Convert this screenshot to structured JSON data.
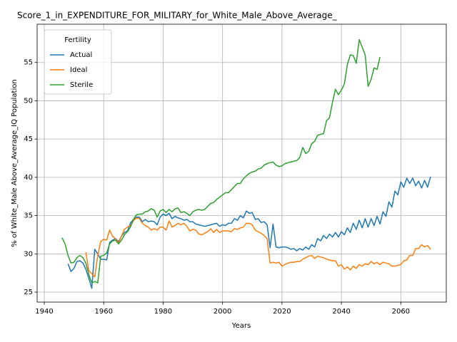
{
  "chart_data": {
    "type": "line",
    "title": "Score_1_in_EXPENDITURE_FOR_MILITARY_for_White_Male_Above_Average_",
    "xlabel": "Years",
    "ylabel": "% of White_Male Above_Average_IQ Population",
    "legend_title": "Fertility",
    "legend": "upper left",
    "grid": true,
    "xlim": [
      1937.6,
      2075.3
    ],
    "ylim": [
      23.7,
      60.0
    ],
    "xticks": [
      1940,
      1960,
      1980,
      2000,
      2020,
      2040,
      2060
    ],
    "yticks": [
      25,
      30,
      35,
      40,
      45,
      50,
      55
    ],
    "x": [
      1946,
      1947,
      1948,
      1949,
      1950,
      1951,
      1952,
      1953,
      1954,
      1955,
      1956,
      1957,
      1958,
      1959,
      1960,
      1961,
      1962,
      1963,
      1964,
      1965,
      1966,
      1967,
      1968,
      1969,
      1970,
      1971,
      1972,
      1973,
      1974,
      1975,
      1976,
      1977,
      1978,
      1979,
      1980,
      1981,
      1982,
      1983,
      1984,
      1985,
      1986,
      1987,
      1988,
      1989,
      1990,
      1991,
      1992,
      1993,
      1994,
      1995,
      1996,
      1997,
      1998,
      1999,
      2000,
      2001,
      2002,
      2003,
      2004,
      2005,
      2006,
      2007,
      2008,
      2009,
      2010,
      2011,
      2012,
      2013,
      2014,
      2015,
      2016,
      2017,
      2018,
      2019,
      2020,
      2021,
      2022,
      2023,
      2024,
      2025,
      2026,
      2027,
      2028,
      2029,
      2030,
      2031,
      2032,
      2033,
      2034,
      2035,
      2036,
      2037,
      2038,
      2039,
      2040,
      2041,
      2042,
      2043,
      2044,
      2045,
      2046,
      2047,
      2048,
      2049,
      2050,
      2051,
      2052,
      2053,
      2054,
      2055,
      2056,
      2057,
      2058,
      2059,
      2060,
      2061,
      2062,
      2063,
      2064,
      2065,
      2066,
      2067,
      2068,
      2069,
      2070
    ],
    "series": [
      {
        "name": "Actual",
        "color": "#1f77b4",
        "values": [
          null,
          null,
          28.7,
          27.7,
          28.1,
          29.0,
          29.1,
          28.8,
          28.0,
          26.8,
          25.5,
          30.6,
          30.0,
          29.3,
          29.3,
          29.2,
          31.5,
          31.8,
          32.0,
          31.6,
          32.3,
          32.8,
          33.0,
          34.0,
          34.5,
          34.8,
          34.8,
          34.2,
          34.5,
          34.2,
          34.3,
          34.2,
          33.8,
          34.8,
          35.2,
          35.0,
          35.3,
          34.6,
          34.9,
          34.7,
          34.6,
          34.4,
          34.5,
          34.2,
          34.2,
          33.9,
          33.8,
          33.7,
          33.6,
          33.7,
          33.8,
          33.9,
          34.0,
          33.6,
          33.8,
          33.7,
          34.0,
          34.0,
          34.6,
          34.4,
          35.0,
          34.7,
          35.6,
          35.3,
          35.4,
          34.5,
          34.6,
          34.1,
          34.2,
          33.8,
          30.8,
          33.9,
          30.9,
          30.8,
          30.9,
          30.9,
          30.8,
          30.6,
          30.7,
          30.4,
          30.7,
          30.5,
          30.9,
          30.6,
          31.2,
          30.9,
          32.0,
          31.7,
          32.4,
          32.0,
          32.6,
          32.2,
          32.8,
          32.2,
          32.9,
          32.5,
          33.4,
          32.8,
          34.0,
          33.2,
          34.4,
          33.4,
          34.6,
          33.5,
          34.6,
          33.7,
          34.9,
          33.9,
          35.5,
          34.9,
          36.8,
          36.1,
          38.2,
          37.7,
          39.4,
          38.7,
          39.9,
          39.2,
          39.9,
          38.9,
          39.5,
          38.6,
          39.6,
          38.7,
          40.1
        ]
      },
      {
        "name": "Ideal",
        "color": "#ff7f0e",
        "values": [
          null,
          null,
          null,
          null,
          null,
          null,
          null,
          null,
          30.2,
          27.8,
          27.4,
          27.0,
          29.8,
          31.6,
          31.9,
          31.8,
          33.1,
          32.3,
          32.0,
          31.4,
          32.3,
          33.2,
          33.5,
          33.7,
          34.3,
          34.7,
          34.6,
          34.0,
          33.7,
          33.5,
          33.1,
          33.3,
          33.1,
          33.5,
          33.5,
          33.1,
          34.3,
          33.5,
          33.7,
          34.0,
          33.8,
          34.0,
          33.6,
          33.0,
          33.2,
          33.1,
          32.6,
          32.5,
          32.7,
          32.9,
          33.3,
          32.8,
          33.2,
          32.8,
          33.0,
          33.0,
          33.0,
          32.9,
          33.3,
          33.2,
          33.4,
          33.5,
          34.0,
          34.0,
          33.8,
          33.1,
          32.9,
          32.7,
          32.4,
          32.0,
          28.8,
          28.9,
          28.8,
          28.9,
          28.4,
          28.6,
          28.8,
          28.9,
          28.9,
          29.0,
          29.0,
          29.3,
          29.5,
          29.7,
          29.8,
          29.4,
          29.7,
          29.6,
          29.5,
          29.3,
          29.2,
          29.1,
          29.1,
          28.4,
          28.6,
          28.0,
          28.3,
          27.9,
          28.4,
          28.1,
          28.6,
          28.4,
          28.7,
          28.6,
          29.0,
          28.7,
          28.9,
          28.6,
          28.9,
          28.8,
          28.7,
          28.4,
          28.4,
          28.5,
          28.6,
          29.1,
          29.2,
          29.8,
          29.8,
          30.7,
          30.7,
          31.2,
          30.9,
          31.1,
          30.6
        ]
      },
      {
        "name": "Sterile",
        "color": "#2ca02c",
        "values": [
          32.1,
          31.3,
          29.8,
          28.8,
          28.9,
          29.5,
          29.8,
          29.5,
          28.8,
          27.3,
          26.2,
          26.4,
          26.2,
          29.7,
          29.8,
          30.1,
          31.3,
          31.7,
          31.8,
          31.3,
          31.8,
          32.5,
          32.9,
          33.5,
          34.5,
          35.1,
          35.2,
          35.2,
          35.5,
          35.6,
          35.9,
          35.7,
          34.8,
          35.6,
          35.8,
          35.4,
          35.8,
          35.5,
          35.9,
          36.0,
          35.4,
          35.5,
          35.3,
          35.0,
          35.5,
          35.7,
          35.8,
          35.7,
          35.8,
          36.2,
          36.6,
          36.7,
          37.1,
          37.4,
          37.7,
          38.0,
          38.0,
          38.4,
          38.8,
          39.2,
          39.2,
          39.8,
          40.2,
          40.5,
          40.7,
          40.8,
          41.1,
          41.2,
          41.6,
          41.8,
          41.9,
          42.0,
          41.6,
          41.4,
          41.5,
          41.8,
          41.9,
          42.0,
          42.1,
          42.2,
          42.6,
          43.9,
          43.1,
          43.4,
          44.4,
          44.7,
          45.5,
          45.6,
          45.7,
          47.4,
          47.8,
          49.8,
          51.5,
          50.8,
          51.4,
          52.2,
          54.7,
          56.0,
          55.9,
          54.9,
          58.0,
          57.0,
          56.0,
          51.9,
          52.8,
          54.3,
          54.1,
          55.7,
          null,
          null,
          null,
          null,
          null,
          null,
          null,
          null,
          null,
          null,
          null,
          null,
          null,
          null,
          null,
          null,
          null
        ]
      }
    ]
  }
}
